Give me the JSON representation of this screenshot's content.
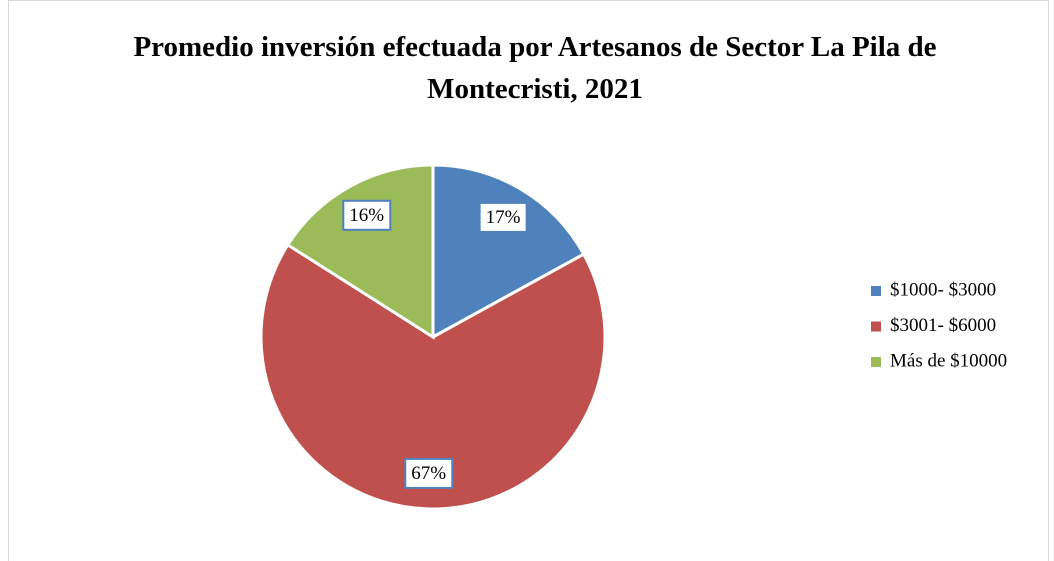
{
  "chart_data": {
    "type": "pie",
    "title": "Promedio inversión efectuada por Artesanos de Sector La Pila de Montecristi, 2021",
    "categories": [
      "$1000- $3000",
      "$3001- $6000",
      "Más de $10000"
    ],
    "values": [
      17,
      67,
      16
    ],
    "value_labels": [
      "17%",
      "67%",
      "16%"
    ],
    "colors": [
      "#4f81bd",
      "#c0504d",
      "#9bbb59"
    ],
    "legend": "right"
  }
}
